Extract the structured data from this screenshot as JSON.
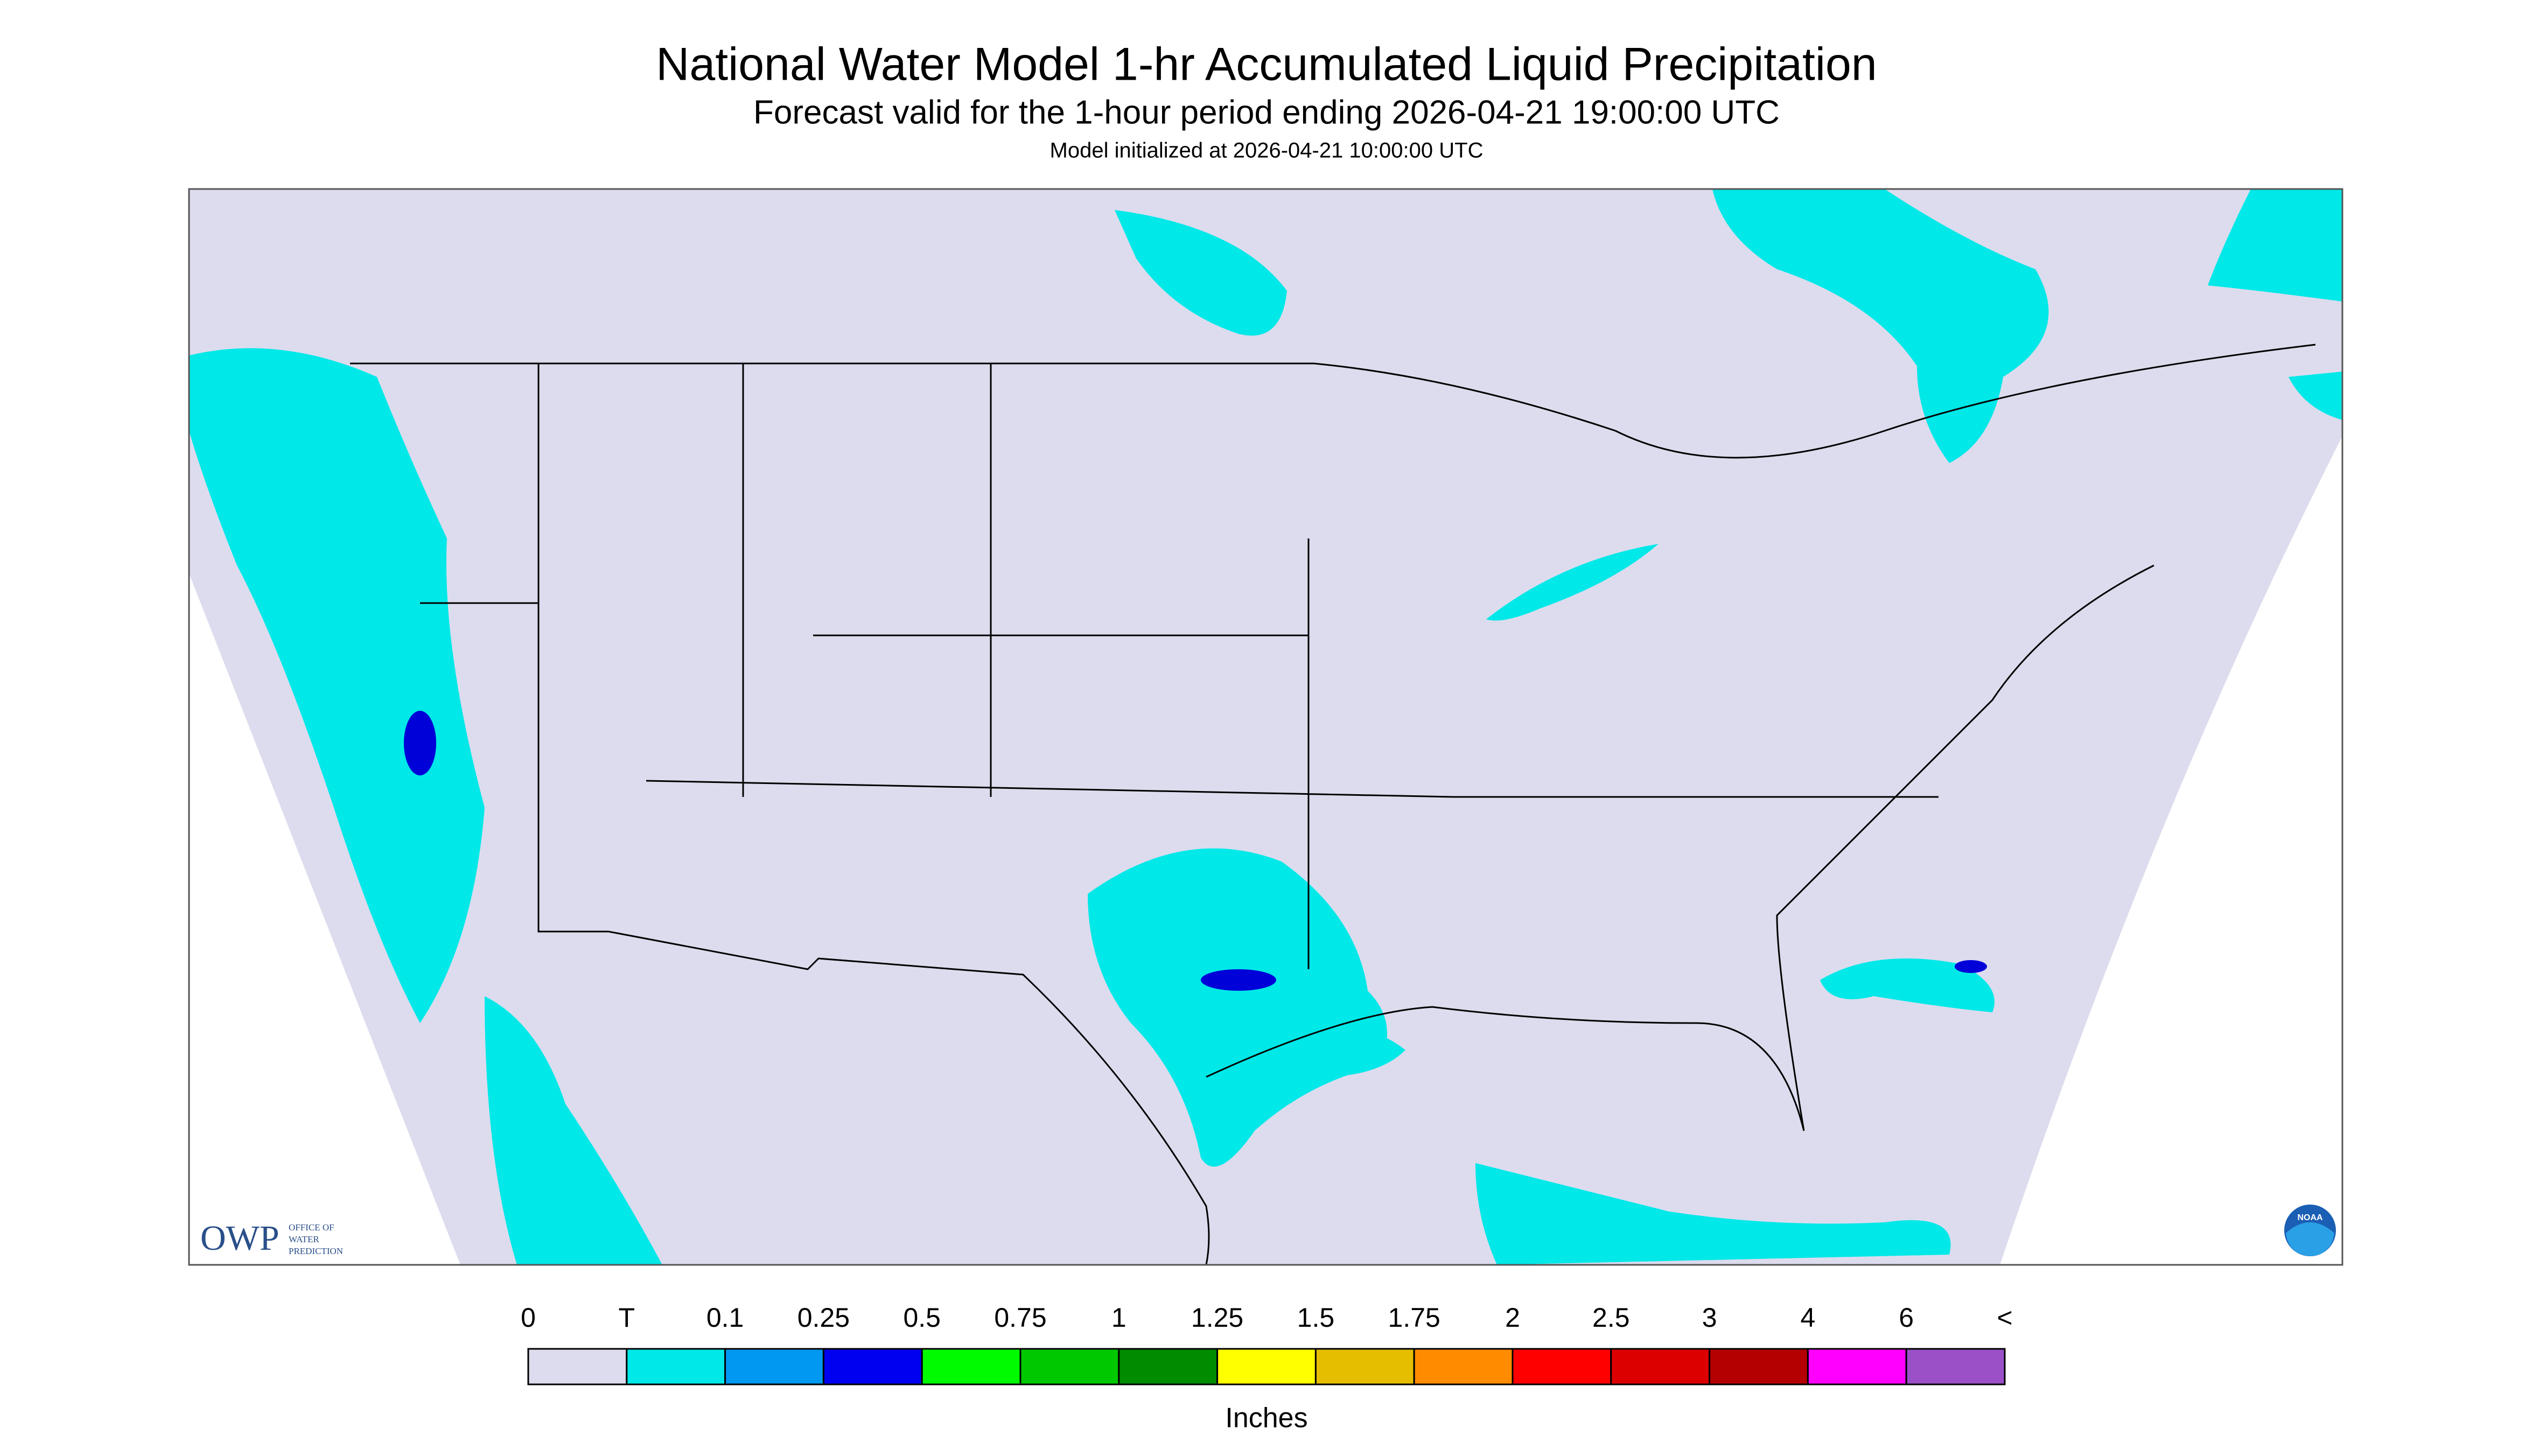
{
  "header": {
    "title": "National Water Model 1-hr Accumulated Liquid Precipitation",
    "subtitle": "Forecast valid for the 1-hour period ending 2026-04-21 19:00:00 UTC",
    "initialized": "Model initialized at 2026-04-21 10:00:00 UTC"
  },
  "legend": {
    "labels": [
      "0",
      "T",
      "0.1",
      "0.25",
      "0.5",
      "0.75",
      "1",
      "1.25",
      "1.5",
      "1.75",
      "2",
      "2.5",
      "3",
      "4",
      "6",
      "<"
    ],
    "colors": [
      "#dcdcee",
      "#00e8e8",
      "#0098f0",
      "#0000f0",
      "#00fa00",
      "#00c800",
      "#008c00",
      "#ffff00",
      "#e6be00",
      "#ff8c00",
      "#ff0000",
      "#dc0000",
      "#b40000",
      "#ff00ff",
      "#9b50c8"
    ],
    "unit": "Inches"
  },
  "logos": {
    "owp": "OWP",
    "owp_text": [
      "OFFICE OF",
      "WATER",
      "PREDICTION"
    ],
    "noaa": "NOAA"
  }
}
